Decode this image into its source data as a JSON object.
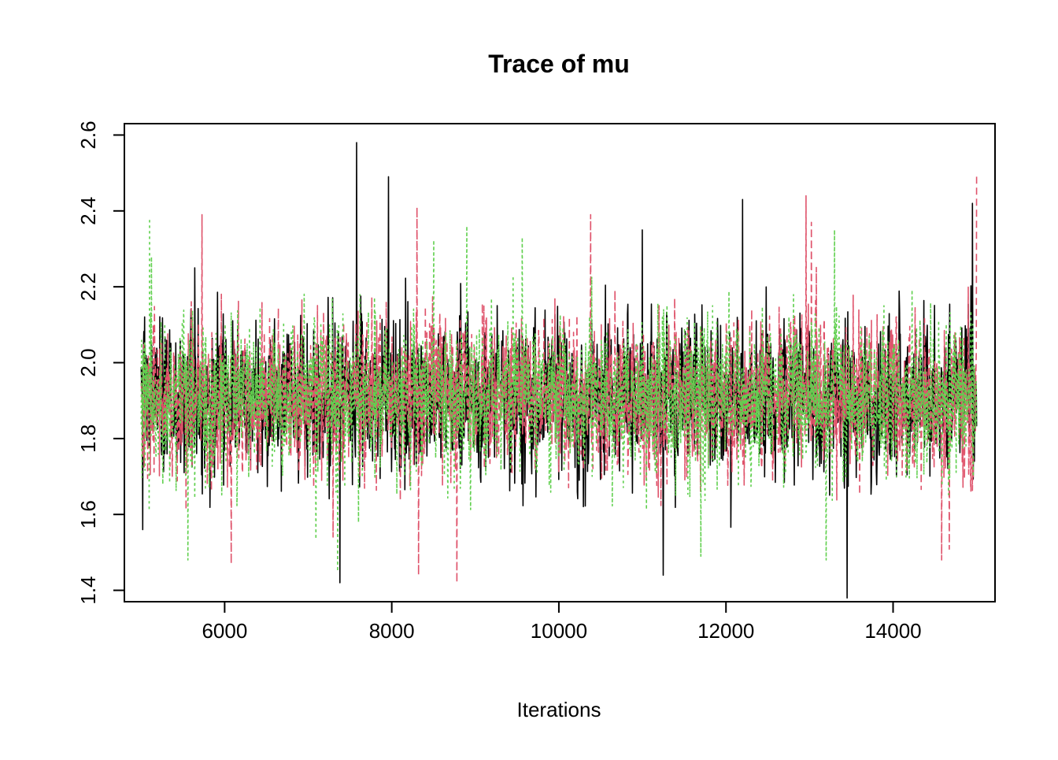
{
  "chart_data": {
    "type": "line",
    "title": "Trace of mu",
    "xlabel": "Iterations",
    "ylabel": "",
    "xlim": [
      4800,
      15220
    ],
    "ylim": [
      1.37,
      2.63
    ],
    "x_ticks": [
      6000,
      8000,
      10000,
      12000,
      14000
    ],
    "x_tick_labels": [
      "6000",
      "8000",
      "10000",
      "12000",
      "14000"
    ],
    "y_ticks": [
      1.4,
      1.6,
      1.8,
      2.0,
      2.2,
      2.4,
      2.6
    ],
    "y_tick_labels": [
      "1.4",
      "1.6",
      "1.8",
      "2.0",
      "2.2",
      "2.4",
      "2.6"
    ],
    "grid": false,
    "legend": "none",
    "iterations": {
      "start": 5001,
      "end": 15000
    },
    "chain_summary": {
      "mean": 1.91,
      "sd": 0.1,
      "min": 1.38,
      "max": 2.58
    },
    "series": [
      {
        "color": "#000000",
        "dash": "solid",
        "mean": 1.91,
        "sd": 0.1,
        "extremes": [
          [
            5640,
            2.25
          ],
          [
            7580,
            2.58
          ],
          [
            7960,
            2.49
          ],
          [
            11000,
            2.35
          ],
          [
            12200,
            2.43
          ],
          [
            14950,
            2.42
          ],
          [
            7380,
            1.42
          ],
          [
            11250,
            1.44
          ],
          [
            13450,
            1.38
          ],
          [
            5020,
            1.56
          ]
        ]
      },
      {
        "color": "#DF536B",
        "dash": "dashed",
        "mean": 1.91,
        "sd": 0.1,
        "extremes": [
          [
            5730,
            2.39
          ],
          [
            8300,
            2.41
          ],
          [
            10380,
            2.39
          ],
          [
            12960,
            2.44
          ],
          [
            15000,
            2.49
          ],
          [
            13020,
            2.37
          ],
          [
            8320,
            1.44
          ],
          [
            8780,
            1.42
          ],
          [
            6080,
            1.47
          ],
          [
            14580,
            1.48
          ]
        ]
      },
      {
        "color": "#61D04F",
        "dash": "dotted",
        "mean": 1.91,
        "sd": 0.1,
        "extremes": [
          [
            5100,
            2.38
          ],
          [
            8900,
            2.36
          ],
          [
            13300,
            2.35
          ],
          [
            9560,
            2.33
          ],
          [
            7350,
            1.45
          ],
          [
            5560,
            1.48
          ],
          [
            11700,
            1.49
          ],
          [
            13200,
            1.48
          ]
        ]
      }
    ]
  }
}
